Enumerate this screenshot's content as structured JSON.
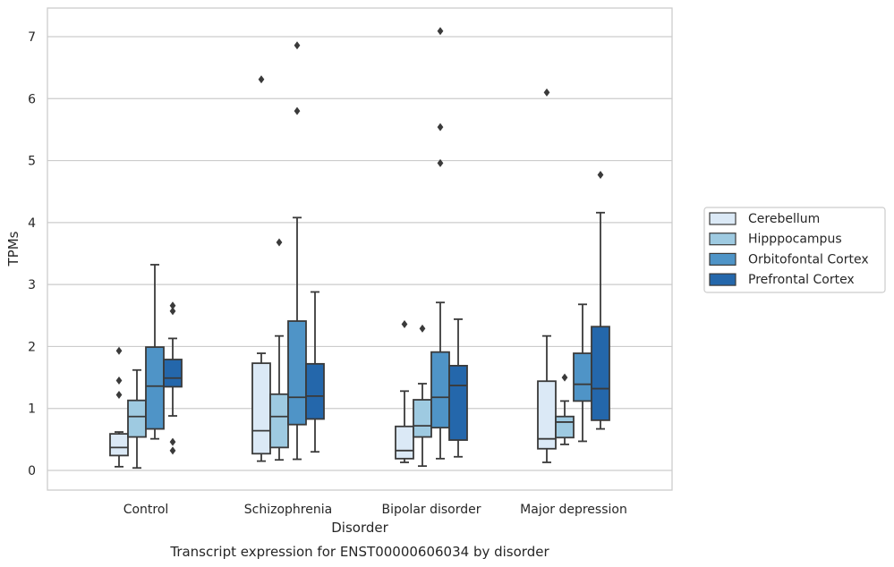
{
  "chart_data": {
    "type": "box",
    "title": "Transcript expression for ENST00000606034 by disorder",
    "xlabel": "Disorder",
    "ylabel": "TPMs",
    "ylim": [
      -0.3,
      7.48
    ],
    "yticks": [
      0,
      1,
      2,
      3,
      4,
      5,
      6,
      7
    ],
    "grid": "horizontal",
    "legend_position": "right",
    "categories": [
      "Control",
      "Schizophrenia",
      "Bipolar disorder",
      "Major depression"
    ],
    "colors": {
      "Cerebellum": "#dbe9f6",
      "Hipppocampus": "#9ecae1",
      "Orbitofontal Cortex": "#4f94c7",
      "Prefrontal Cortex": "#2467ab",
      "edge": "#3a3a3a",
      "grid": "#cccccc"
    },
    "series": [
      {
        "name": "Cerebellum",
        "boxes": [
          {
            "whislo": 0.06,
            "q1": 0.24,
            "med": 0.37,
            "q3": 0.59,
            "whishi": 0.62,
            "fliers": [
              1.22,
              1.45,
              1.93
            ]
          },
          {
            "whislo": 0.15,
            "q1": 0.27,
            "med": 0.64,
            "q3": 1.73,
            "whishi": 1.89,
            "fliers": [
              6.31
            ]
          },
          {
            "whislo": 0.13,
            "q1": 0.19,
            "med": 0.32,
            "q3": 0.71,
            "whishi": 1.28,
            "fliers": [
              2.36
            ]
          },
          {
            "whislo": 0.13,
            "q1": 0.35,
            "med": 0.51,
            "q3": 1.44,
            "whishi": 2.17,
            "fliers": [
              6.1
            ]
          }
        ]
      },
      {
        "name": "Hipppocampus",
        "boxes": [
          {
            "whislo": 0.04,
            "q1": 0.54,
            "med": 0.87,
            "q3": 1.13,
            "whishi": 1.62,
            "fliers": []
          },
          {
            "whislo": 0.17,
            "q1": 0.37,
            "med": 0.87,
            "q3": 1.23,
            "whishi": 2.17,
            "fliers": [
              3.68
            ]
          },
          {
            "whislo": 0.07,
            "q1": 0.54,
            "med": 0.72,
            "q3": 1.14,
            "whishi": 1.4,
            "fliers": [
              2.29
            ]
          },
          {
            "whislo": 0.42,
            "q1": 0.53,
            "med": 0.78,
            "q3": 0.87,
            "whishi": 1.12,
            "fliers": [
              1.5
            ]
          }
        ]
      },
      {
        "name": "Orbitofontal Cortex",
        "boxes": [
          {
            "whislo": 0.51,
            "q1": 0.67,
            "med": 1.36,
            "q3": 1.99,
            "whishi": 3.32,
            "fliers": []
          },
          {
            "whislo": 0.18,
            "q1": 0.74,
            "med": 1.18,
            "q3": 2.41,
            "whishi": 4.08,
            "fliers": [
              5.8,
              6.86
            ]
          },
          {
            "whislo": 0.19,
            "q1": 0.69,
            "med": 1.18,
            "q3": 1.91,
            "whishi": 2.71,
            "fliers": [
              4.96,
              5.54,
              7.09
            ]
          },
          {
            "whislo": 0.47,
            "q1": 1.12,
            "med": 1.39,
            "q3": 1.89,
            "whishi": 2.68,
            "fliers": []
          }
        ]
      },
      {
        "name": "Prefrontal Cortex",
        "boxes": [
          {
            "whislo": 0.88,
            "q1": 1.35,
            "med": 1.49,
            "q3": 1.79,
            "whishi": 2.13,
            "fliers": [
              0.32,
              0.46,
              2.57,
              2.66
            ]
          },
          {
            "whislo": 0.3,
            "q1": 0.83,
            "med": 1.2,
            "q3": 1.72,
            "whishi": 2.88,
            "fliers": []
          },
          {
            "whislo": 0.22,
            "q1": 0.49,
            "med": 1.37,
            "q3": 1.69,
            "whishi": 2.44,
            "fliers": []
          },
          {
            "whislo": 0.67,
            "q1": 0.81,
            "med": 1.32,
            "q3": 2.32,
            "whishi": 4.16,
            "fliers": [
              4.77
            ]
          }
        ]
      }
    ]
  }
}
